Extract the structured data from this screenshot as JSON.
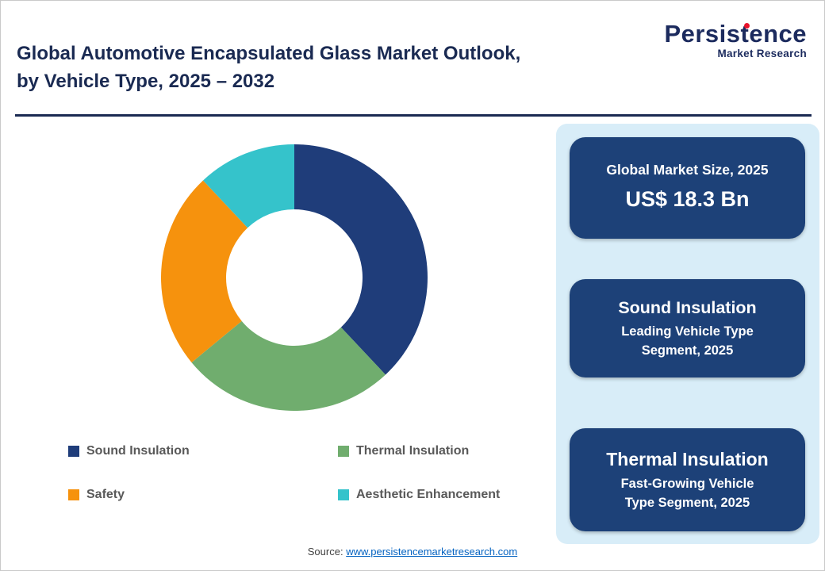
{
  "header": {
    "title_line1": "Global Automotive Encapsulated Glass Market Outlook,",
    "title_line2": "by Vehicle Type, 2025 – 2032",
    "logo": {
      "word": "Persistence",
      "subtitle": "Market Research",
      "accent_color": "#e8132b",
      "text_color": "#1c2b5e"
    }
  },
  "chart_data": {
    "type": "pie",
    "variant": "donut",
    "title": "Global Automotive Encapsulated Glass Market Outlook, by Vehicle Type, 2025 – 2032",
    "start_angle_deg": 0,
    "direction": "clockwise",
    "legend_position": "bottom",
    "segments": [
      {
        "label": "Sound Insulation",
        "value": 38,
        "color": "#1f3d7a"
      },
      {
        "label": "Thermal Insulation",
        "value": 26,
        "color": "#70ad6e"
      },
      {
        "label": "Safety",
        "value": 24,
        "color": "#f6920d"
      },
      {
        "label": "Aesthetic Enhancement",
        "value": 12,
        "color": "#35c3cb"
      }
    ],
    "values_are": "percent share (estimated from arc angles)"
  },
  "sidebar": {
    "background_color": "#d8edf8",
    "card_color": "#1d4178",
    "cards": [
      {
        "line1": "Global Market Size, 2025",
        "line2": "US$ 18.3 Bn"
      },
      {
        "line1": "Sound Insulation",
        "line2": "Leading Vehicle Type\nSegment, 2025"
      },
      {
        "line1": "Thermal Insulation",
        "line2": "Fast-Growing Vehicle\nType Segment, 2025"
      }
    ]
  },
  "footer": {
    "source_prefix": "Source: ",
    "source_link": "www.persistencemarketresearch.com"
  }
}
